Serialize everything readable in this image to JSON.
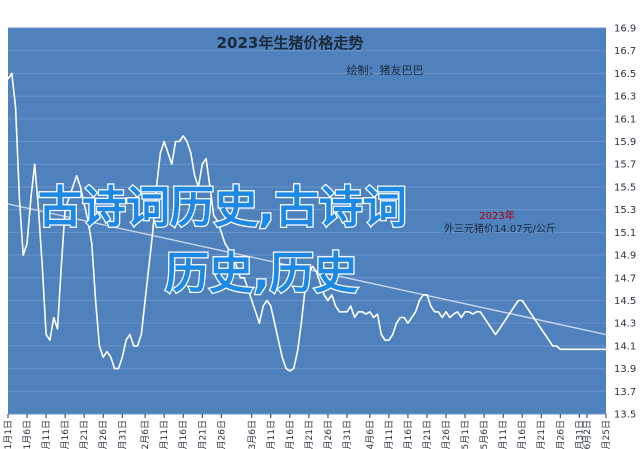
{
  "chart_data": {
    "type": "line",
    "title": "2023年生猪价格走势",
    "subtitle": "绘制：猪友巴巴",
    "annotation": {
      "lines": [
        "2023年",
        "外三元猪价14.07元/公斤"
      ],
      "color": "#b30000"
    },
    "watermark": {
      "lines": [
        "古诗词历史,古诗词",
        "历史,历史"
      ],
      "color": "#1e88e5"
    },
    "colors": {
      "plot_background": "#4f81bd",
      "series_line": "#ffffff",
      "trend_line": "#c8d6ea"
    },
    "ylim": [
      13.5,
      16.9
    ],
    "yticks": [
      "13.5",
      "13.7",
      "13.9",
      "14.1",
      "14.3",
      "14.5",
      "14.7",
      "14.9",
      "15.1",
      "15.3",
      "15.5",
      "15.7",
      "15.9",
      "16.1",
      "16.3",
      "16.5",
      "16.7",
      "16.9"
    ],
    "xlim": [
      0,
      157
    ],
    "grid": true,
    "legend": "none",
    "xticks": [
      {
        "x": 0,
        "label": "1月1日"
      },
      {
        "x": 5,
        "label": "1月6日"
      },
      {
        "x": 10,
        "label": "1月11日"
      },
      {
        "x": 15,
        "label": "1月16日"
      },
      {
        "x": 20,
        "label": "1月21日"
      },
      {
        "x": 25,
        "label": "1月26日"
      },
      {
        "x": 30,
        "label": "1月31日"
      },
      {
        "x": 36,
        "label": "2月6日"
      },
      {
        "x": 41,
        "label": "2月11日"
      },
      {
        "x": 46,
        "label": "2月16日"
      },
      {
        "x": 51,
        "label": "2月21日"
      },
      {
        "x": 56,
        "label": "2月26日"
      },
      {
        "x": 64,
        "label": "3月6日"
      },
      {
        "x": 69,
        "label": "3月11日"
      },
      {
        "x": 74,
        "label": "3月16日"
      },
      {
        "x": 79,
        "label": "3月21日"
      },
      {
        "x": 84,
        "label": "3月26日"
      },
      {
        "x": 89,
        "label": "3月31日"
      },
      {
        "x": 95,
        "label": "4月6日"
      },
      {
        "x": 100,
        "label": "4月11日"
      },
      {
        "x": 105,
        "label": "4月16日"
      },
      {
        "x": 110,
        "label": "4月21日"
      },
      {
        "x": 115,
        "label": "4月26日"
      },
      {
        "x": 120,
        "label": "5月1日"
      },
      {
        "x": 125,
        "label": "5月6日"
      },
      {
        "x": 130,
        "label": "5月11日"
      },
      {
        "x": 135,
        "label": "5月16日"
      },
      {
        "x": 140,
        "label": "5月21日"
      },
      {
        "x": 145,
        "label": "5月26日"
      },
      {
        "x": 150,
        "label": "5月31日"
      },
      {
        "x": 152,
        "label": "6月2日"
      },
      {
        "x": 157,
        "label": "6月25日"
      }
    ],
    "series": [
      {
        "x": [
          0,
          1,
          2,
          3,
          4,
          5,
          6,
          7,
          8,
          9,
          10,
          11,
          12,
          13,
          14,
          15,
          16,
          17,
          18,
          19,
          20,
          21,
          22,
          23,
          24,
          25,
          26,
          27,
          28,
          29,
          30,
          31,
          32,
          33,
          34,
          35,
          36,
          37,
          38,
          39,
          40,
          41,
          42,
          43,
          44,
          45,
          46,
          47,
          48,
          49,
          50,
          51,
          52,
          53,
          54,
          55,
          56,
          57,
          58,
          59,
          60,
          61,
          62,
          63,
          64,
          65,
          66,
          67,
          68,
          69,
          70,
          71,
          72,
          73,
          74,
          75,
          76,
          77,
          78,
          79,
          80,
          81,
          82,
          83,
          84,
          85,
          86,
          87,
          88,
          89,
          90,
          91,
          92,
          93,
          94,
          95,
          96,
          97,
          98,
          99,
          100,
          101,
          102,
          103,
          104,
          105,
          106,
          107,
          108,
          109,
          110,
          111,
          112,
          113,
          114,
          115,
          116,
          117,
          118,
          119,
          120,
          121,
          122,
          123,
          124,
          125,
          126,
          127,
          128,
          129,
          130,
          131,
          132,
          133,
          134,
          135,
          136,
          137,
          138,
          139,
          140,
          141,
          142,
          143,
          144,
          145,
          146,
          147,
          148,
          149,
          150,
          151,
          152,
          153,
          154,
          155,
          156,
          157
        ],
        "values": [
          16.45,
          16.5,
          16.2,
          15.4,
          14.9,
          15.0,
          15.4,
          15.7,
          15.3,
          14.8,
          14.2,
          14.15,
          14.35,
          14.25,
          14.8,
          15.3,
          15.4,
          15.5,
          15.6,
          15.5,
          15.35,
          15.2,
          15.0,
          14.5,
          14.1,
          14.0,
          14.05,
          14.0,
          13.9,
          13.9,
          14.0,
          14.15,
          14.2,
          14.1,
          14.1,
          14.2,
          14.5,
          14.8,
          15.1,
          15.5,
          15.8,
          15.9,
          15.8,
          15.7,
          15.9,
          15.9,
          15.95,
          15.9,
          15.8,
          15.6,
          15.5,
          15.7,
          15.75,
          15.5,
          15.25,
          15.2,
          15.1,
          15.0,
          14.95,
          14.9,
          14.8,
          14.7,
          14.7,
          14.6,
          14.5,
          14.4,
          14.3,
          14.45,
          14.5,
          14.45,
          14.3,
          14.15,
          14.0,
          13.9,
          13.88,
          13.9,
          14.05,
          14.3,
          14.6,
          14.75,
          14.8,
          14.75,
          14.65,
          14.55,
          14.5,
          14.55,
          14.45,
          14.4,
          14.4,
          14.4,
          14.45,
          14.35,
          14.4,
          14.4,
          14.38,
          14.4,
          14.35,
          14.38,
          14.2,
          14.15,
          14.15,
          14.2,
          14.3,
          14.35,
          14.35,
          14.3,
          14.35,
          14.4,
          14.5,
          14.55,
          14.55,
          14.45,
          14.4,
          14.4,
          14.35,
          14.4,
          14.35,
          14.38,
          14.4,
          14.35,
          14.4,
          14.4,
          14.38,
          14.4,
          14.4,
          14.35,
          14.3,
          14.25,
          14.2,
          14.25,
          14.3,
          14.35,
          14.4,
          14.45,
          14.5,
          14.5,
          14.45,
          14.4,
          14.35,
          14.3,
          14.25,
          14.2,
          14.15,
          14.1,
          14.1,
          14.07,
          14.07,
          14.07,
          14.07,
          14.07,
          14.07,
          14.07,
          14.07,
          14.07,
          14.07,
          14.07,
          14.07,
          14.07
        ]
      }
    ],
    "trend": {
      "x": [
        0,
        157
      ],
      "values": [
        15.35,
        14.2
      ]
    }
  }
}
